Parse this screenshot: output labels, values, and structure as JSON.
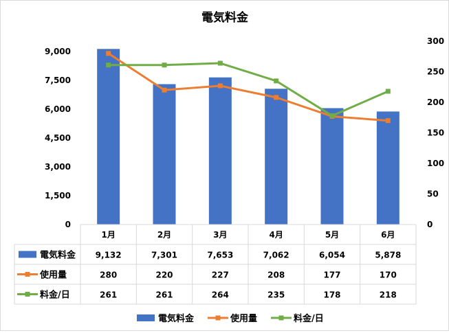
{
  "chart_data": {
    "type": "bar",
    "title": "電気料金",
    "categories": [
      "1月",
      "2月",
      "3月",
      "4月",
      "5月",
      "6月"
    ],
    "left_axis": {
      "ticks": [
        "0",
        "1,500",
        "3,000",
        "4,500",
        "6,000",
        "7,500",
        "9,000"
      ],
      "ylim": [
        0,
        9000
      ]
    },
    "right_axis": {
      "ticks": [
        "0",
        "50",
        "100",
        "150",
        "200",
        "250",
        "300"
      ],
      "ylim": [
        0,
        300
      ]
    },
    "series": [
      {
        "name": "電気料金",
        "kind": "bar",
        "axis": "left",
        "color": "#4472C4",
        "values": [
          9132,
          7301,
          7653,
          7062,
          6054,
          5878
        ],
        "labels": [
          "9,132",
          "7,301",
          "7,653",
          "7,062",
          "6,054",
          "5,878"
        ]
      },
      {
        "name": "使用量",
        "kind": "line",
        "axis": "right",
        "color": "#ED7D31",
        "values": [
          280,
          220,
          227,
          208,
          177,
          170
        ],
        "labels": [
          "280",
          "220",
          "227",
          "208",
          "177",
          "170"
        ]
      },
      {
        "name": "料金/日",
        "kind": "line",
        "axis": "right",
        "color": "#70AD47",
        "values": [
          261,
          261,
          264,
          235,
          178,
          218
        ],
        "labels": [
          "261",
          "261",
          "264",
          "235",
          "178",
          "218"
        ]
      }
    ],
    "data_table": true,
    "legend": "bottom",
    "grid": false
  }
}
